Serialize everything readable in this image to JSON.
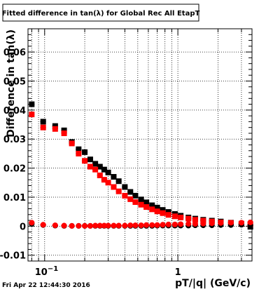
{
  "chart_data": {
    "type": "scatter",
    "title": "Fitted difference in tan(λ) for Global Rec All EtapT",
    "xlabel": "pT/|q| (GeV/c)",
    "ylabel": "Difference in tan(λ)",
    "xscale": "log",
    "xlim": [
      0.075,
      3.6
    ],
    "ylim": [
      -0.012,
      0.068
    ],
    "grid": true,
    "x_tick_labels": [
      {
        "value": 0.1,
        "label": "10",
        "exp": "−1"
      },
      {
        "value": 1,
        "label": "1",
        "exp": ""
      }
    ],
    "y_ticks": [
      {
        "value": -0.01,
        "label": "-0.01"
      },
      {
        "value": 0,
        "label": "0"
      },
      {
        "value": 0.01,
        "label": "0.01"
      },
      {
        "value": 0.02,
        "label": "0.02"
      },
      {
        "value": 0.03,
        "label": "0.03"
      },
      {
        "value": 0.04,
        "label": "0.04"
      },
      {
        "value": 0.05,
        "label": "0.05"
      },
      {
        "value": 0.06,
        "label": "0.06"
      }
    ],
    "series": [
      {
        "color": "#000000",
        "marker": "square",
        "x": [
          0.08,
          0.0975,
          0.12,
          0.14,
          0.16,
          0.18,
          0.2,
          0.22,
          0.24,
          0.26,
          0.28,
          0.3,
          0.33,
          0.36,
          0.4,
          0.44,
          0.48,
          0.53,
          0.58,
          0.64,
          0.7,
          0.77,
          0.85,
          0.95,
          1.05,
          1.2,
          1.35,
          1.55,
          1.8,
          2.1,
          2.5,
          3.0,
          3.5
        ],
        "y": [
          0.042,
          0.036,
          0.0345,
          0.033,
          0.029,
          0.0265,
          0.0255,
          0.023,
          0.0215,
          0.0205,
          0.0195,
          0.0185,
          0.017,
          0.0155,
          0.0135,
          0.0118,
          0.0105,
          0.0092,
          0.0082,
          0.0072,
          0.0064,
          0.0056,
          0.0049,
          0.0042,
          0.0036,
          0.003,
          0.0026,
          0.0022,
          0.0019,
          0.0016,
          0.0012,
          0.0008,
          -0.0002
        ]
      },
      {
        "color": "#ff0000",
        "marker": "square",
        "x": [
          0.08,
          0.0975,
          0.12,
          0.14,
          0.16,
          0.18,
          0.2,
          0.22,
          0.24,
          0.26,
          0.28,
          0.3,
          0.33,
          0.36,
          0.4,
          0.44,
          0.48,
          0.53,
          0.58,
          0.64,
          0.7,
          0.77,
          0.85,
          0.95,
          1.05,
          1.2,
          1.35,
          1.55,
          1.8,
          2.1,
          2.5,
          3.0,
          3.5
        ],
        "y": [
          0.0385,
          0.034,
          0.0335,
          0.032,
          0.0285,
          0.025,
          0.0225,
          0.0205,
          0.0195,
          0.0175,
          0.016,
          0.015,
          0.0135,
          0.012,
          0.0105,
          0.0093,
          0.0083,
          0.0074,
          0.0066,
          0.0058,
          0.0051,
          0.0045,
          0.0039,
          0.0034,
          0.003,
          0.0026,
          0.0022,
          0.0019,
          0.0016,
          0.0013,
          0.0011,
          0.0009,
          0.0007
        ]
      },
      {
        "color": "#000000",
        "marker": "circle",
        "x": [
          0.08,
          0.0975,
          0.12,
          0.14,
          0.16,
          0.18,
          0.2,
          0.22,
          0.24,
          0.26,
          0.28,
          0.3,
          0.33,
          0.36,
          0.4,
          0.44,
          0.48,
          0.53,
          0.58,
          0.64,
          0.7,
          0.77,
          0.85,
          0.95,
          1.05,
          1.2,
          1.35,
          1.55,
          1.8,
          2.1,
          2.5,
          3.0,
          3.5
        ],
        "y": [
          0.0008,
          0.0004,
          0.0002,
          0.0001,
          0.0001,
          0.0001,
          0.0001,
          0.0001,
          0.0001,
          0.0001,
          0.0001,
          0.0001,
          0.0001,
          0.0001,
          0.0001,
          0.0001,
          0.0001,
          0.0001,
          0.0001,
          0.0001,
          0.0002,
          0.0002,
          0.0002,
          0.0002,
          0.0002,
          0.0002,
          0.0003,
          0.0003,
          0.0003,
          0.0004,
          0.0004,
          0.0005,
          0.0003
        ]
      },
      {
        "color": "#ff0000",
        "marker": "circle",
        "x": [
          0.08,
          0.0975,
          0.12,
          0.14,
          0.16,
          0.18,
          0.2,
          0.22,
          0.24,
          0.26,
          0.28,
          0.3,
          0.33,
          0.36,
          0.4,
          0.44,
          0.48,
          0.53,
          0.58,
          0.64,
          0.7,
          0.77,
          0.85,
          0.95,
          1.05,
          1.2,
          1.35,
          1.55,
          1.8,
          2.1,
          2.5,
          3.0,
          3.5
        ],
        "y": [
          0.0012,
          0.0005,
          0.0003,
          0.0002,
          0.0001,
          0.0001,
          0.0001,
          0.0001,
          0.0002,
          0.0002,
          0.0002,
          0.0002,
          0.0002,
          0.0002,
          0.0002,
          0.0003,
          0.0003,
          0.0003,
          0.0004,
          0.0004,
          0.0004,
          0.0005,
          0.0006,
          0.0006,
          0.0007,
          0.0008,
          0.0008,
          0.0009,
          0.001,
          0.0011,
          0.0012,
          0.0012,
          0.0013
        ]
      }
    ]
  },
  "footer": {
    "timestamp": "Fri Apr 22 12:44:30 2016"
  }
}
